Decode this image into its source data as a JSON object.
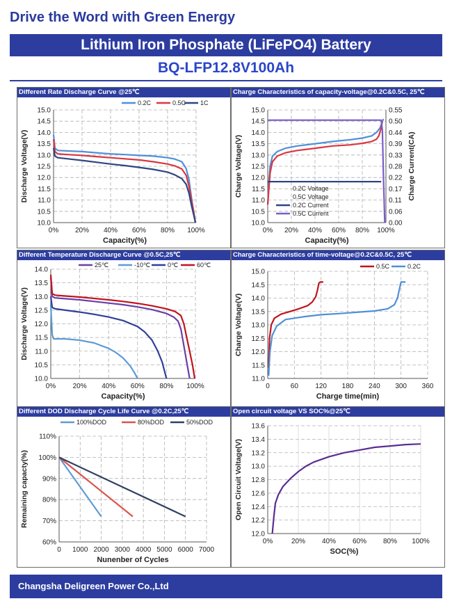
{
  "header": {
    "tagline": "Drive the Word with Green Energy",
    "product": "Lithium Iron Phosphate (LiFePO4) Battery",
    "model": "BQ-LFP12.8V100Ah"
  },
  "footer": {
    "company": "Changsha Deligreen Power Co.,Ltd"
  },
  "colors": {
    "brand_blue": "#2d3d9f",
    "c02": "#4f8fd8",
    "c05": "#d9373f",
    "c1": "#2e4582",
    "purple": "#6a3fa6",
    "cold": "#5d9bd5"
  },
  "chart_data": [
    {
      "title": "Different Rate Discharge Curve @25℃",
      "type": "line",
      "xlabel": "Capacity(%)",
      "ylabel": "Discharge Voltage(V)",
      "xlim": [
        0,
        100
      ],
      "ylim": [
        10.0,
        15.0
      ],
      "xticks": [
        "0%",
        "20%",
        "40%",
        "60%",
        "80%",
        "100%"
      ],
      "yticks": [
        "10.0",
        "10.5",
        "11.0",
        "11.5",
        "12.0",
        "12.5",
        "13.0",
        "13.5",
        "14.0",
        "14.5",
        "15.0"
      ],
      "legend": "top-right",
      "series": [
        {
          "name": "0.2C",
          "color": "#4f8fd8",
          "x": [
            0,
            1,
            3,
            10,
            20,
            30,
            40,
            50,
            60,
            70,
            80,
            85,
            90,
            93,
            95,
            97,
            98,
            99.5
          ],
          "y": [
            13.9,
            13.3,
            13.2,
            13.18,
            13.15,
            13.1,
            13.05,
            13.02,
            12.98,
            12.95,
            12.88,
            12.82,
            12.7,
            12.4,
            11.9,
            11.0,
            10.6,
            10.0
          ]
        },
        {
          "name": "0.5C",
          "color": "#d9373f",
          "x": [
            0,
            1,
            3,
            10,
            20,
            30,
            40,
            50,
            60,
            70,
            80,
            85,
            90,
            93,
            95,
            97,
            98.5,
            99.5
          ],
          "y": [
            13.7,
            13.15,
            13.05,
            13.02,
            12.98,
            12.93,
            12.88,
            12.83,
            12.78,
            12.7,
            12.6,
            12.52,
            12.38,
            12.1,
            11.6,
            10.9,
            10.4,
            10.0
          ]
        },
        {
          "name": "1C",
          "color": "#2e4582",
          "x": [
            0,
            1,
            3,
            10,
            20,
            30,
            40,
            50,
            60,
            70,
            80,
            85,
            90,
            93,
            95,
            97,
            98.5,
            99.5
          ],
          "y": [
            13.3,
            12.95,
            12.88,
            12.83,
            12.76,
            12.68,
            12.6,
            12.53,
            12.45,
            12.36,
            12.24,
            12.12,
            11.95,
            11.7,
            11.3,
            10.7,
            10.3,
            10.0
          ]
        }
      ]
    },
    {
      "title": "Charge  Characteristics of capacity-voltage@0.2C&0.5C, 25℃",
      "type": "line",
      "xlabel": "Capacity(%)",
      "ylabel": "Charge Voltage(V)",
      "y2label": "Charge Current(CA)",
      "xlim": [
        0,
        100
      ],
      "ylim": [
        10.0,
        15.0
      ],
      "y2lim": [
        0.0,
        0.55
      ],
      "xticks": [
        "0%",
        "20%",
        "40%",
        "60%",
        "80%",
        "100%"
      ],
      "yticks": [
        "10.0",
        "10.5",
        "11.0",
        "11.5",
        "12.0",
        "12.5",
        "13.0",
        "13.5",
        "14.0",
        "14.5",
        "15.0"
      ],
      "y2ticks": [
        "0.00",
        "0.06",
        "0.11",
        "0.17",
        "0.22",
        "0.28",
        "0.33",
        "0.39",
        "0.44",
        "0.50",
        "0.55"
      ],
      "legend": "center",
      "series": [
        {
          "name": "0.2C Voltage",
          "color": "#4f8fd8",
          "axis": "left",
          "x": [
            0,
            1,
            2,
            4,
            8,
            15,
            25,
            40,
            55,
            70,
            80,
            88,
            92,
            95,
            97,
            98
          ],
          "y": [
            10.8,
            11.8,
            12.5,
            12.95,
            13.15,
            13.3,
            13.4,
            13.5,
            13.6,
            13.68,
            13.75,
            13.85,
            14.0,
            14.2,
            14.5,
            14.6
          ]
        },
        {
          "name": "0.5C Voltage",
          "color": "#d9373f",
          "axis": "left",
          "x": [
            0,
            1,
            2,
            4,
            8,
            15,
            25,
            40,
            55,
            70,
            80,
            88,
            92,
            94,
            96,
            97
          ],
          "y": [
            10.8,
            11.5,
            12.2,
            12.7,
            12.95,
            13.1,
            13.2,
            13.3,
            13.4,
            13.45,
            13.52,
            13.6,
            13.7,
            13.85,
            14.2,
            14.5
          ]
        },
        {
          "name": "0.2C Current",
          "color": "#2e4582",
          "axis": "right",
          "x": [
            0,
            96
          ],
          "y": [
            0.2,
            0.2
          ]
        },
        {
          "name": "0.5C Current",
          "color": "#7a5cc9",
          "axis": "right",
          "x": [
            0,
            96,
            97,
            98,
            99
          ],
          "y": [
            0.5,
            0.5,
            0.45,
            0.2,
            0.0
          ]
        }
      ]
    },
    {
      "title": "Different Temperature Discharge Curve @0.5C,25℃",
      "type": "line",
      "xlabel": "Capacity(%)",
      "ylabel": "Discharge Voltage(V)",
      "xlim": [
        0,
        100
      ],
      "ylim": [
        10.0,
        14.0
      ],
      "xticks": [
        "0%",
        "20%",
        "40%",
        "60%",
        "80%",
        "100%"
      ],
      "yticks": [
        "10.0",
        "10.5",
        "11.0",
        "11.5",
        "12.0",
        "12.5",
        "13.0",
        "13.5",
        "14.0"
      ],
      "legend": "top",
      "series": [
        {
          "name": "25℃",
          "color": "#6a3fa6",
          "x": [
            0,
            1,
            3,
            10,
            20,
            30,
            40,
            50,
            60,
            70,
            80,
            85,
            88,
            90,
            92,
            94,
            96
          ],
          "y": [
            13.7,
            13.0,
            12.95,
            12.92,
            12.88,
            12.82,
            12.76,
            12.7,
            12.62,
            12.52,
            12.38,
            12.25,
            12.1,
            11.8,
            11.2,
            10.6,
            10.0
          ]
        },
        {
          "name": "-10℃",
          "color": "#5d9bd5",
          "x": [
            0,
            1,
            2,
            4,
            10,
            20,
            30,
            40,
            45,
            50,
            55,
            58,
            60
          ],
          "y": [
            12.7,
            11.6,
            11.45,
            11.45,
            11.45,
            11.4,
            11.3,
            11.1,
            10.95,
            10.75,
            10.45,
            10.2,
            10.0
          ]
        },
        {
          "name": "0℃",
          "color": "#2f3f9a",
          "x": [
            0,
            1,
            3,
            10,
            20,
            30,
            40,
            50,
            60,
            65,
            70,
            74,
            77,
            79,
            80
          ],
          "y": [
            13.0,
            12.6,
            12.55,
            12.5,
            12.43,
            12.35,
            12.25,
            12.12,
            11.9,
            11.7,
            11.4,
            11.0,
            10.6,
            10.2,
            10.0
          ]
        },
        {
          "name": "60℃",
          "color": "#c0141e",
          "x": [
            0,
            1,
            3,
            10,
            20,
            30,
            40,
            50,
            60,
            70,
            80,
            86,
            90,
            92,
            94,
            96,
            98,
            99.5
          ],
          "y": [
            13.8,
            13.1,
            13.05,
            13.02,
            12.98,
            12.93,
            12.88,
            12.82,
            12.75,
            12.66,
            12.55,
            12.45,
            12.3,
            12.0,
            11.5,
            11.0,
            10.5,
            10.0
          ]
        }
      ]
    },
    {
      "title": "Charge  Characteristics of time-voltage@0.2C&0.5C, 25℃",
      "type": "line",
      "xlabel": "Charge time(min)",
      "ylabel": "Charge Voltage(V)",
      "xlim": [
        0,
        360
      ],
      "ylim": [
        11.0,
        15.0
      ],
      "xticks": [
        "0",
        "60",
        "120",
        "180",
        "240",
        "300",
        "360"
      ],
      "yticks": [
        "11.0",
        "11.5",
        "12.0",
        "12.5",
        "13.0",
        "13.5",
        "14.0",
        "14.5",
        "15.0"
      ],
      "legend": "top-right",
      "series": [
        {
          "name": "0.5C",
          "color": "#c0141e",
          "x": [
            2,
            4,
            8,
            15,
            30,
            50,
            70,
            90,
            100,
            108,
            112,
            115,
            118,
            125
          ],
          "y": [
            11.4,
            12.5,
            13.0,
            13.25,
            13.4,
            13.5,
            13.6,
            13.72,
            13.85,
            14.05,
            14.3,
            14.55,
            14.6,
            14.6
          ]
        },
        {
          "name": "0.2C",
          "color": "#4f8fd8",
          "x": [
            2,
            5,
            10,
            20,
            40,
            80,
            120,
            160,
            200,
            240,
            270,
            285,
            292,
            296,
            300,
            310
          ],
          "y": [
            11.1,
            12.0,
            12.6,
            12.95,
            13.2,
            13.3,
            13.38,
            13.42,
            13.47,
            13.52,
            13.6,
            13.75,
            14.0,
            14.3,
            14.6,
            14.6
          ]
        }
      ]
    },
    {
      "title": "Different DOD Discharge Cycle Life Curve @0.2C,25℃",
      "type": "line",
      "xlabel": "Nunenber of Cycles",
      "ylabel": "Remaining capacty(%)",
      "xlim": [
        0,
        7000
      ],
      "ylim": [
        60,
        110
      ],
      "xticks": [
        "0",
        "1000",
        "2000",
        "3000",
        "4000",
        "5000",
        "6000",
        "7000"
      ],
      "yticks": [
        "60%",
        "70%",
        "80%",
        "90%",
        "100%",
        "110%"
      ],
      "legend": "top",
      "series": [
        {
          "name": "100%DOD",
          "color": "#5d9bd5",
          "x": [
            0,
            2000
          ],
          "y": [
            100,
            72
          ]
        },
        {
          "name": "80%DOD",
          "color": "#d9534f",
          "x": [
            0,
            3500
          ],
          "y": [
            100,
            72
          ]
        },
        {
          "name": "50%DOD",
          "color": "#2e4060",
          "x": [
            0,
            6000
          ],
          "y": [
            100,
            72
          ]
        }
      ]
    },
    {
      "title": "Open circuit voltage VS SOC%@25℃",
      "type": "line",
      "xlabel": "SOC(%)",
      "ylabel": "Open Circuit Voltage(V)",
      "xlim": [
        0,
        100
      ],
      "ylim": [
        12.0,
        13.6
      ],
      "xticks": [
        "0%",
        "20%",
        "40%",
        "60%",
        "80%",
        "100%"
      ],
      "yticks": [
        "12.0",
        "12.2",
        "12.4",
        "12.6",
        "12.8",
        "13.0",
        "13.2",
        "13.4",
        "13.6"
      ],
      "legend": "none",
      "series": [
        {
          "name": "",
          "color": "#5a2d91",
          "x": [
            3,
            4,
            5,
            7,
            10,
            15,
            20,
            25,
            30,
            40,
            50,
            60,
            70,
            80,
            90,
            100
          ],
          "y": [
            12.0,
            12.25,
            12.45,
            12.58,
            12.7,
            12.82,
            12.92,
            13.0,
            13.06,
            13.14,
            13.2,
            13.24,
            13.28,
            13.3,
            13.32,
            13.33
          ]
        }
      ]
    }
  ]
}
